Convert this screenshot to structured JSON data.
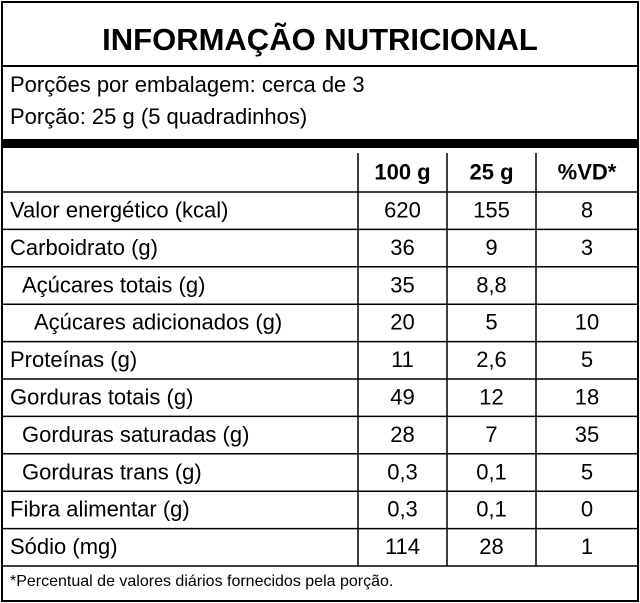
{
  "header": {
    "title": "INFORMAÇÃO NUTRICIONAL",
    "servings": "Porções por embalagem: cerca de 3",
    "portion": "Porção: 25 g (5 quadradinhos)"
  },
  "table": {
    "columns": [
      "100 g",
      "25 g",
      "%VD*"
    ],
    "rows": [
      {
        "label": "Valor energético (kcal)",
        "indent": 0,
        "values": [
          "620",
          "155",
          "8"
        ]
      },
      {
        "label": "Carboidrato (g)",
        "indent": 0,
        "values": [
          "36",
          "9",
          "3"
        ]
      },
      {
        "label": "Açúcares totais (g)",
        "indent": 1,
        "values": [
          "35",
          "8,8",
          null
        ]
      },
      {
        "label": "Açúcares adicionados (g)",
        "indent": 2,
        "values": [
          "20",
          "5",
          "10"
        ]
      },
      {
        "label": "Proteínas (g)",
        "indent": 0,
        "values": [
          "11",
          "2,6",
          "5"
        ]
      },
      {
        "label": "Gorduras totais (g)",
        "indent": 0,
        "values": [
          "49",
          "12",
          "18"
        ]
      },
      {
        "label": "Gorduras saturadas (g)",
        "indent": 1,
        "values": [
          "28",
          "7",
          "35"
        ]
      },
      {
        "label": "Gorduras trans (g)",
        "indent": 1,
        "values": [
          "0,3",
          "0,1",
          "5"
        ]
      },
      {
        "label": "Fibra alimentar (g)",
        "indent": 0,
        "values": [
          "0,3",
          "0,1",
          "0"
        ]
      },
      {
        "label": "Sódio (mg)",
        "indent": 0,
        "values": [
          "114",
          "28",
          "1"
        ]
      }
    ]
  },
  "footnote": "*Percentual de valores diários fornecidos pela porção."
}
